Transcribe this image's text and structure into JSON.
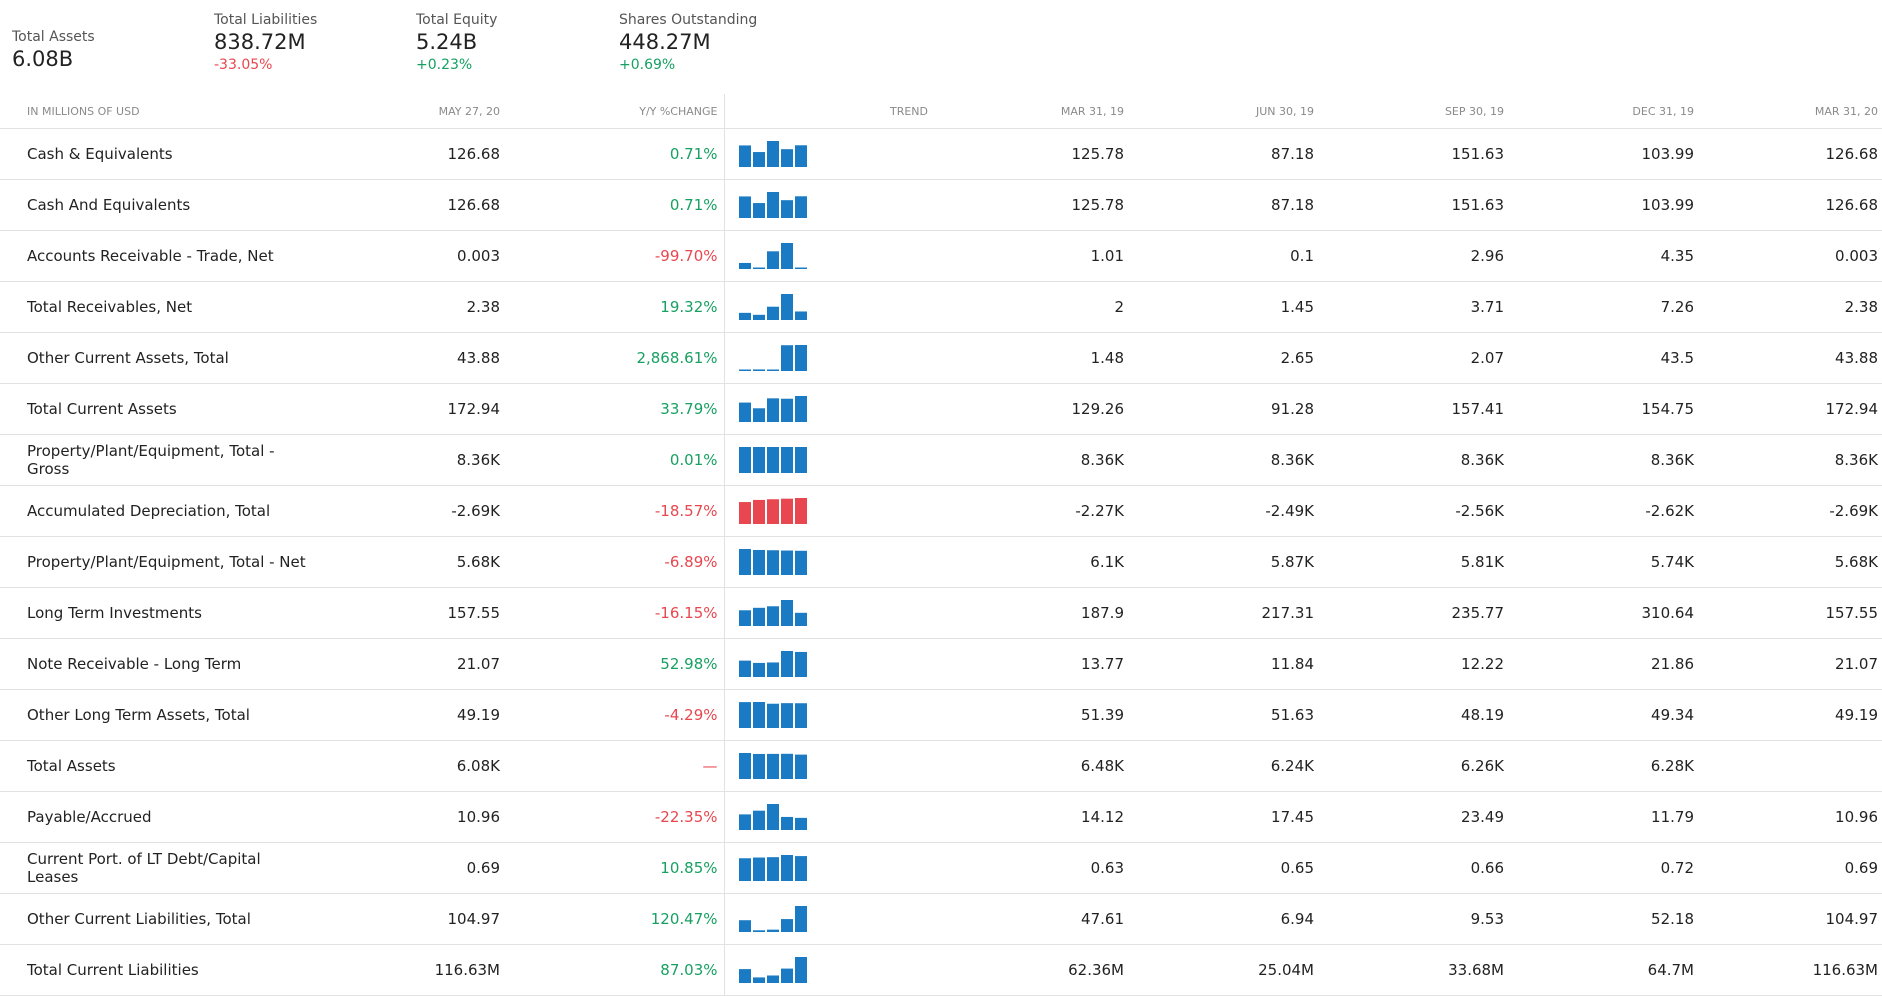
{
  "summary": [
    {
      "label": "Total Assets",
      "value": "6.08B",
      "change": "",
      "dir": ""
    },
    {
      "label": "Total Liabilities",
      "value": "838.72M",
      "change": "-33.05%",
      "dir": "neg"
    },
    {
      "label": "Total Equity",
      "value": "5.24B",
      "change": "+0.23%",
      "dir": "pos"
    },
    {
      "label": "Shares Outstanding",
      "value": "448.27M",
      "change": "+0.69%",
      "dir": "pos"
    }
  ],
  "table": {
    "headers": {
      "name": "IN MILLIONS OF USD",
      "current": "MAY 27, 20",
      "change": "Y/Y %CHANGE",
      "trend": "TREND",
      "periods": [
        "MAR 31, 19",
        "JUN 30, 19",
        "SEP 30, 19",
        "DEC 31, 19",
        "MAR 31, 20"
      ]
    },
    "rows": [
      {
        "name": "Cash & Equivalents",
        "current": "126.68",
        "change": "0.71%",
        "dir": "pos",
        "trend_color": "#1a7bc4",
        "trend": [
          125.78,
          87.18,
          151.63,
          103.99,
          126.68
        ],
        "periods": [
          "125.78",
          "87.18",
          "151.63",
          "103.99",
          "126.68"
        ]
      },
      {
        "name": "Cash And Equivalents",
        "current": "126.68",
        "change": "0.71%",
        "dir": "pos",
        "trend_color": "#1a7bc4",
        "trend": [
          125.78,
          87.18,
          151.63,
          103.99,
          126.68
        ],
        "periods": [
          "125.78",
          "87.18",
          "151.63",
          "103.99",
          "126.68"
        ]
      },
      {
        "name": "Accounts Receivable - Trade, Net",
        "current": "0.003",
        "change": "-99.70%",
        "dir": "neg",
        "trend_color": "#1a7bc4",
        "trend": [
          1.01,
          0.1,
          2.96,
          4.35,
          0.003
        ],
        "periods": [
          "1.01",
          "0.1",
          "2.96",
          "4.35",
          "0.003"
        ]
      },
      {
        "name": "Total Receivables, Net",
        "current": "2.38",
        "change": "19.32%",
        "dir": "pos",
        "trend_color": "#1a7bc4",
        "trend": [
          2,
          1.45,
          3.71,
          7.26,
          2.38
        ],
        "periods": [
          "2",
          "1.45",
          "3.71",
          "7.26",
          "2.38"
        ]
      },
      {
        "name": "Other Current Assets, Total",
        "current": "43.88",
        "change": "2,868.61%",
        "dir": "pos",
        "trend_color": "#1a7bc4",
        "trend": [
          1.48,
          2.65,
          2.07,
          43.5,
          43.88
        ],
        "periods": [
          "1.48",
          "2.65",
          "2.07",
          "43.5",
          "43.88"
        ]
      },
      {
        "name": "Total Current Assets",
        "current": "172.94",
        "change": "33.79%",
        "dir": "pos",
        "trend_color": "#1a7bc4",
        "trend": [
          129.26,
          91.28,
          157.41,
          154.75,
          172.94
        ],
        "periods": [
          "129.26",
          "91.28",
          "157.41",
          "154.75",
          "172.94"
        ]
      },
      {
        "name": "Property/Plant/Equipment, Total - Gross",
        "current": "8.36K",
        "change": "0.01%",
        "dir": "pos",
        "trend_color": "#1a7bc4",
        "trend": [
          8.36,
          8.36,
          8.36,
          8.36,
          8.36
        ],
        "periods": [
          "8.36K",
          "8.36K",
          "8.36K",
          "8.36K",
          "8.36K"
        ]
      },
      {
        "name": "Accumulated Depreciation, Total",
        "current": "-2.69K",
        "change": "-18.57%",
        "dir": "neg",
        "trend_color": "#e8474f",
        "trend": [
          2.27,
          2.49,
          2.56,
          2.62,
          2.69
        ],
        "periods": [
          "-2.27K",
          "-2.49K",
          "-2.56K",
          "-2.62K",
          "-2.69K"
        ]
      },
      {
        "name": "Property/Plant/Equipment, Total - Net",
        "current": "5.68K",
        "change": "-6.89%",
        "dir": "neg",
        "trend_color": "#1a7bc4",
        "trend": [
          6.1,
          5.87,
          5.81,
          5.74,
          5.68
        ],
        "periods": [
          "6.1K",
          "5.87K",
          "5.81K",
          "5.74K",
          "5.68K"
        ]
      },
      {
        "name": "Long Term Investments",
        "current": "157.55",
        "change": "-16.15%",
        "dir": "neg",
        "trend_color": "#1a7bc4",
        "trend": [
          187.9,
          217.31,
          235.77,
          310.64,
          157.55
        ],
        "periods": [
          "187.9",
          "217.31",
          "235.77",
          "310.64",
          "157.55"
        ]
      },
      {
        "name": "Note Receivable - Long Term",
        "current": "21.07",
        "change": "52.98%",
        "dir": "pos",
        "trend_color": "#1a7bc4",
        "trend": [
          13.77,
          11.84,
          12.22,
          21.86,
          21.07
        ],
        "periods": [
          "13.77",
          "11.84",
          "12.22",
          "21.86",
          "21.07"
        ]
      },
      {
        "name": "Other Long Term Assets, Total",
        "current": "49.19",
        "change": "-4.29%",
        "dir": "neg",
        "trend_color": "#1a7bc4",
        "trend": [
          51.39,
          51.63,
          48.19,
          49.34,
          49.19
        ],
        "periods": [
          "51.39",
          "51.63",
          "48.19",
          "49.34",
          "49.19"
        ]
      },
      {
        "name": "Total Assets",
        "current": "6.08K",
        "change": "—",
        "dir": "neg",
        "trend_color": "#1a7bc4",
        "trend": [
          6.48,
          6.24,
          6.26,
          6.28,
          6.08
        ],
        "periods": [
          "6.48K",
          "6.24K",
          "6.26K",
          "6.28K",
          ""
        ]
      },
      {
        "name": "Payable/Accrued",
        "current": "10.96",
        "change": "-22.35%",
        "dir": "neg",
        "trend_color": "#1a7bc4",
        "trend": [
          14.12,
          17.45,
          23.49,
          11.79,
          10.96
        ],
        "periods": [
          "14.12",
          "17.45",
          "23.49",
          "11.79",
          "10.96"
        ]
      },
      {
        "name": "Current Port. of LT Debt/Capital Leases",
        "current": "0.69",
        "change": "10.85%",
        "dir": "pos",
        "trend_color": "#1a7bc4",
        "trend": [
          0.63,
          0.65,
          0.66,
          0.72,
          0.69
        ],
        "periods": [
          "0.63",
          "0.65",
          "0.66",
          "0.72",
          "0.69"
        ]
      },
      {
        "name": "Other Current Liabilities, Total",
        "current": "104.97",
        "change": "120.47%",
        "dir": "pos",
        "trend_color": "#1a7bc4",
        "trend": [
          47.61,
          6.94,
          9.53,
          52.18,
          104.97
        ],
        "periods": [
          "47.61",
          "6.94",
          "9.53",
          "52.18",
          "104.97"
        ]
      },
      {
        "name": "Total Current Liabilities",
        "current": "116.63M",
        "change": "87.03%",
        "dir": "pos",
        "trend_color": "#1a7bc4",
        "trend": [
          62.36,
          25.04,
          33.68,
          64.7,
          116.63
        ],
        "periods": [
          "62.36M",
          "25.04M",
          "33.68M",
          "64.7M",
          "116.63M"
        ]
      }
    ]
  }
}
